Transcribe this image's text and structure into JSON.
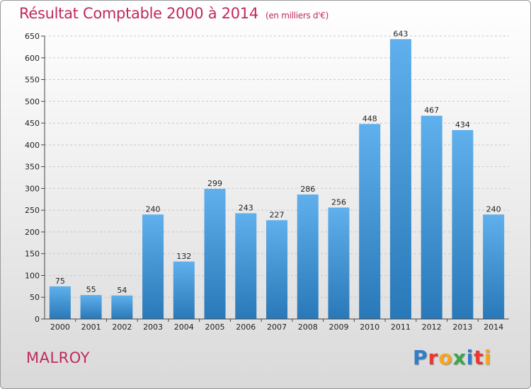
{
  "header": {
    "title": "Résultat Comptable 2000 à 2014",
    "subtitle": "(en milliers d'€)"
  },
  "footer": {
    "place": "MALROY",
    "logo_letters": [
      "P",
      "r",
      "o",
      "x",
      "i",
      "t",
      "i"
    ],
    "logo_colors": [
      "#2f7fc8",
      "#e83a33",
      "#f5a623",
      "#3aa64a",
      "#2f7fc8",
      "#e83a33",
      "#f5a623"
    ]
  },
  "colors": {
    "title": "#c0295f",
    "bar_top": "#5fb0ec",
    "bar_bottom": "#2978b8"
  },
  "chart_data": {
    "type": "bar",
    "title": "Résultat Comptable 2000 à 2014",
    "subtitle": "(en milliers d'€)",
    "categories": [
      "2000",
      "2001",
      "2002",
      "2003",
      "2004",
      "2005",
      "2006",
      "2007",
      "2008",
      "2009",
      "2010",
      "2011",
      "2012",
      "2013",
      "2014"
    ],
    "values": [
      75,
      55,
      54,
      240,
      132,
      299,
      243,
      227,
      286,
      256,
      448,
      643,
      467,
      434,
      240
    ],
    "value_labels": [
      "75",
      "55",
      "54",
      "240",
      "132",
      "299",
      "243",
      "227",
      "286",
      "256",
      "448",
      "643",
      "467",
      "434",
      "240"
    ],
    "yticks": [
      0,
      50,
      100,
      150,
      200,
      250,
      300,
      350,
      400,
      450,
      500,
      550,
      600,
      650
    ],
    "ytick_labels": [
      "0",
      "50",
      "100",
      "150",
      "200",
      "250",
      "300",
      "350",
      "400",
      "450",
      "500",
      "550",
      "600",
      "650"
    ],
    "ylim": [
      0,
      650
    ],
    "grid": true
  }
}
